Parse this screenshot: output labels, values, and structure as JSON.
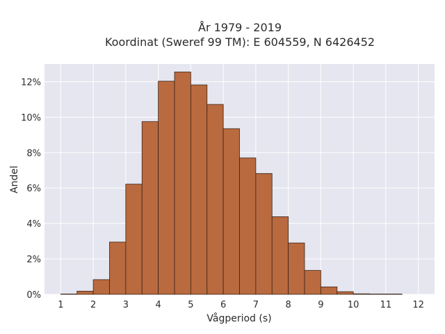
{
  "chart_data": {
    "type": "bar",
    "title_lines": [
      "År 1979 - 2019",
      "Koordinat (Sweref 99 TM): E 604559, N 6426452"
    ],
    "xlabel": "Vågperiod (s)",
    "ylabel": "Andel",
    "x_ticks": [
      1,
      2,
      3,
      4,
      5,
      6,
      7,
      8,
      9,
      10,
      11,
      12
    ],
    "y_ticks": [
      0,
      2,
      4,
      6,
      8,
      10,
      12
    ],
    "y_tick_labels": [
      "0%",
      "2%",
      "4%",
      "6%",
      "8%",
      "10%",
      "12%"
    ],
    "xlim": [
      0.5,
      12.5
    ],
    "ylim": [
      0,
      13
    ],
    "bin_width": 0.5,
    "bins": [
      {
        "x0": 1.0,
        "value": 0.02
      },
      {
        "x0": 1.5,
        "value": 0.18
      },
      {
        "x0": 2.0,
        "value": 0.83
      },
      {
        "x0": 2.5,
        "value": 2.95
      },
      {
        "x0": 3.0,
        "value": 6.22
      },
      {
        "x0": 3.5,
        "value": 9.75
      },
      {
        "x0": 4.0,
        "value": 12.03
      },
      {
        "x0": 4.5,
        "value": 12.55
      },
      {
        "x0": 5.0,
        "value": 11.82
      },
      {
        "x0": 5.5,
        "value": 10.72
      },
      {
        "x0": 6.0,
        "value": 9.35
      },
      {
        "x0": 6.5,
        "value": 7.7
      },
      {
        "x0": 7.0,
        "value": 6.82
      },
      {
        "x0": 7.5,
        "value": 4.38
      },
      {
        "x0": 8.0,
        "value": 2.9
      },
      {
        "x0": 8.5,
        "value": 1.35
      },
      {
        "x0": 9.0,
        "value": 0.42
      },
      {
        "x0": 9.5,
        "value": 0.15
      },
      {
        "x0": 10.0,
        "value": 0.03
      },
      {
        "x0": 10.5,
        "value": 0.02
      },
      {
        "x0": 11.0,
        "value": 0.02
      }
    ],
    "colors": {
      "bar_fill": "#b96a3f",
      "bar_stroke": "#3a2418",
      "plot_background": "#e5e6ef",
      "grid": "#ffffff"
    },
    "grid": true
  }
}
